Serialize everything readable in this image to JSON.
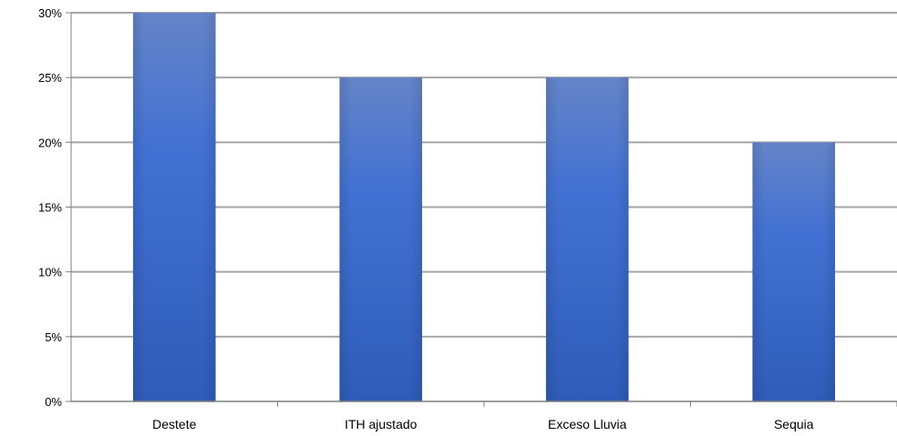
{
  "chart_data": {
    "type": "bar",
    "categories": [
      "Destete",
      "ITH ajustado",
      "Exceso Lluvia",
      "Sequia"
    ],
    "series": [
      {
        "values": [
          30,
          25,
          25,
          20
        ]
      }
    ],
    "ylim": [
      0,
      30
    ],
    "yticks": [
      "0%",
      "5%",
      "10%",
      "15%",
      "20%",
      "25%",
      "30%"
    ],
    "ytick_values": [
      0,
      5,
      10,
      15,
      20,
      25,
      30
    ],
    "grid": true,
    "legend": "none",
    "colors": {
      "bar_top": "#6584c8",
      "bar_mid": "#3f6fd0",
      "bar_bottom": "#2f5cb8",
      "grid": "#a6a6a6",
      "axis": "#7f7f7f"
    }
  }
}
